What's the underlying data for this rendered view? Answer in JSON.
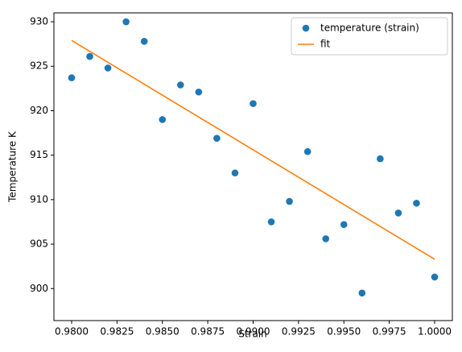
{
  "chart_data": {
    "type": "scatter",
    "xlabel": "Strain",
    "ylabel": "Temperature K",
    "xlim": [
      0.979025,
      1.000975
    ],
    "ylim": [
      896.4,
      931.0
    ],
    "xticks": [
      {
        "value": 0.98,
        "label": "0.9800"
      },
      {
        "value": 0.9825,
        "label": "0.9825"
      },
      {
        "value": 0.985,
        "label": "0.9850"
      },
      {
        "value": 0.9875,
        "label": "0.9875"
      },
      {
        "value": 0.99,
        "label": "0.9900"
      },
      {
        "value": 0.9925,
        "label": "0.9925"
      },
      {
        "value": 0.995,
        "label": "0.9950"
      },
      {
        "value": 0.9975,
        "label": "0.9975"
      },
      {
        "value": 1.0,
        "label": "1.0000"
      }
    ],
    "yticks": [
      900,
      905,
      910,
      915,
      920,
      925,
      930
    ],
    "legend": "upper right",
    "series": [
      {
        "name": "temperature (strain)",
        "type": "scatter",
        "color": "#1f77b4",
        "x": [
          0.98,
          0.981,
          0.982,
          0.983,
          0.984,
          0.985,
          0.986,
          0.987,
          0.988,
          0.989,
          0.99,
          0.991,
          0.992,
          0.993,
          0.994,
          0.995,
          0.996,
          0.997,
          0.998,
          0.999,
          1.0
        ],
        "values": [
          923.7,
          926.1,
          924.8,
          930.0,
          927.8,
          919.0,
          922.9,
          922.1,
          916.9,
          913.0,
          920.8,
          907.5,
          909.8,
          915.4,
          905.6,
          907.2,
          899.5,
          914.6,
          908.5,
          909.6,
          901.3
        ]
      },
      {
        "name": "fit",
        "type": "line",
        "color": "#ff7f0e",
        "x": [
          0.98,
          1.0
        ],
        "values": [
          927.9,
          903.3
        ]
      }
    ]
  }
}
